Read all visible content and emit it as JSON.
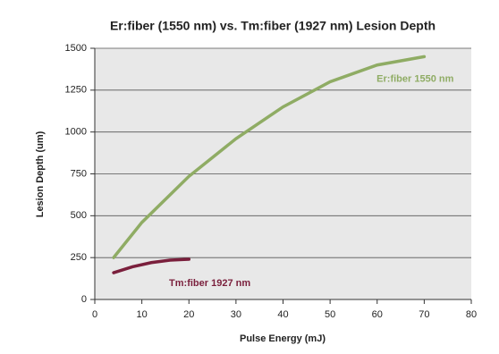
{
  "chart_data": {
    "type": "line",
    "title": "Er:fiber (1550 nm) vs. Tm:fiber (1927 nm) Lesion Depth",
    "x_label": "Pulse Energy (mJ)",
    "y_label": "Lesion Depth (um)",
    "xlim": [
      0,
      80
    ],
    "xticks": [
      0,
      10,
      20,
      30,
      40,
      50,
      60,
      70,
      80
    ],
    "ylim": [
      0,
      1500
    ],
    "yticks": [
      0,
      250,
      500,
      750,
      1000,
      1250,
      1500
    ],
    "grid": true,
    "series": [
      {
        "name": "Er:fiber 1550 nm",
        "color": "#8fac64",
        "x": [
          4,
          10,
          20,
          30,
          40,
          50,
          60,
          70
        ],
        "values": [
          250,
          460,
          735,
          960,
          1150,
          1300,
          1400,
          1450
        ]
      },
      {
        "name": "Tm:fiber 1927 nm",
        "color": "#7a1f3c",
        "x": [
          4,
          8,
          12,
          16,
          20
        ],
        "values": [
          160,
          195,
          220,
          235,
          240
        ]
      }
    ]
  }
}
